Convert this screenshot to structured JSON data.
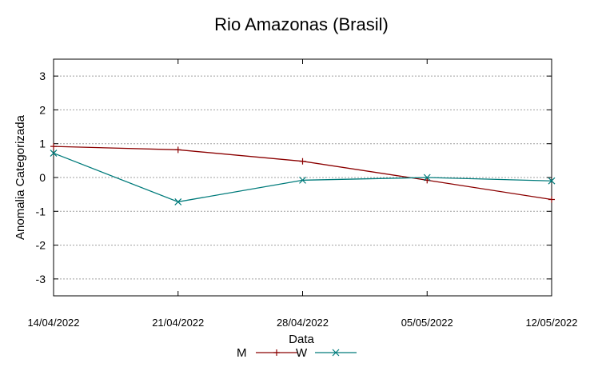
{
  "chart_data": {
    "type": "line",
    "title": "Rio Amazonas (Brasil)",
    "xlabel": "Data",
    "ylabel": "Anomalia Categorizada",
    "x": [
      "14/04/2022",
      "21/04/2022",
      "28/04/2022",
      "05/05/2022",
      "12/05/2022"
    ],
    "ylim": [
      -3.5,
      3.5
    ],
    "yticks": [
      -3,
      -2,
      -1,
      0,
      1,
      2,
      3
    ],
    "grid": true,
    "legend": "bottom-center",
    "series": [
      {
        "name": "M",
        "color": "#8b0000",
        "marker": "plus",
        "values": [
          0.92,
          0.82,
          0.48,
          -0.08,
          -0.65
        ]
      },
      {
        "name": "W",
        "color": "#007b7b",
        "marker": "cross",
        "values": [
          0.72,
          -0.72,
          -0.08,
          0.0,
          -0.1
        ]
      }
    ]
  }
}
